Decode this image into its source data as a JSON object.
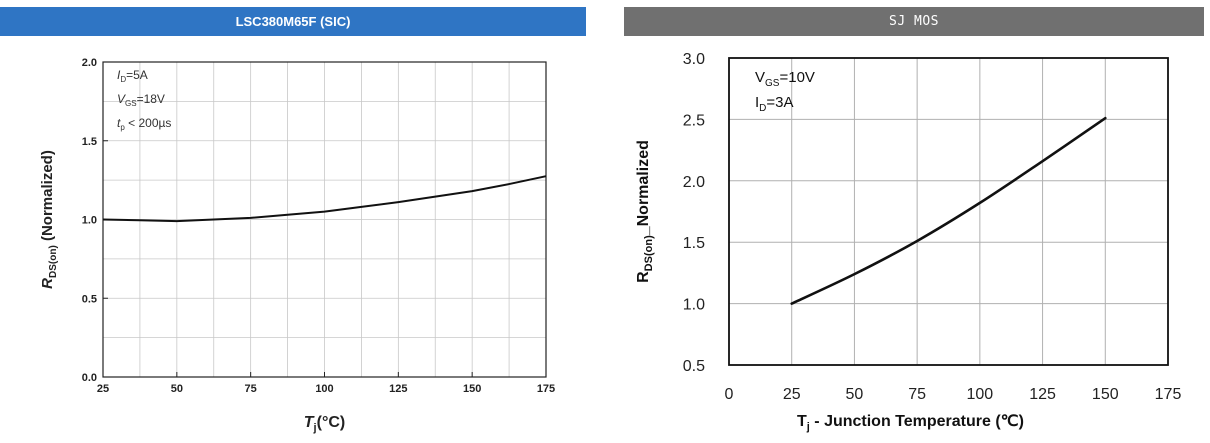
{
  "colors": {
    "left_banner": "#2f75c4",
    "right_banner": "#707070",
    "curve": "#111111",
    "grid": "#c8c8c8",
    "grid_right": "#b0b0b0"
  },
  "chart_data": [
    {
      "type": "line",
      "title": "LSC380M65F (SIC)",
      "xlabel_main": "T",
      "xlabel_sub": "j",
      "xlabel_unit": "(°C)",
      "ylabel_main": "R",
      "ylabel_sub": "DS(on)",
      "ylabel_rest": " (Normalized)",
      "xlim": [
        25,
        175
      ],
      "ylim": [
        0.0,
        2.0
      ],
      "xticks": [
        25,
        50,
        75,
        100,
        125,
        150,
        175
      ],
      "xtick_labels": [
        "25",
        "50",
        "75",
        "100",
        "125",
        "150",
        "175"
      ],
      "yticks": [
        0.0,
        0.5,
        1.0,
        1.5,
        2.0
      ],
      "ytick_labels": [
        "0.0",
        "0.5",
        "1.0",
        "1.5",
        "2.0"
      ],
      "grid": true,
      "annotations": [
        {
          "main": "I",
          "sub": "D",
          "rest": "=5A"
        },
        {
          "main": "V",
          "sub": "GS",
          "rest": "=18V"
        },
        {
          "main": "t",
          "sub": "p",
          "rest": " < 200µs"
        }
      ],
      "series": [
        {
          "x": [
            25,
            37.5,
            50,
            62.5,
            75,
            87.5,
            100,
            112.5,
            125,
            137.5,
            150,
            162.5,
            175
          ],
          "values": [
            1.0,
            0.995,
            0.99,
            1.0,
            1.01,
            1.03,
            1.05,
            1.08,
            1.11,
            1.145,
            1.18,
            1.225,
            1.275
          ]
        }
      ]
    },
    {
      "type": "line",
      "title": "SJ MOS",
      "xlabel_main": "T",
      "xlabel_sub": "j",
      "xlabel_rest": " - Junction Temperature (℃)",
      "ylabel_main": "R",
      "ylabel_sub": "DS(on)",
      "ylabel_rest": "_Normalized",
      "xlim": [
        0,
        175
      ],
      "ylim": [
        0.5,
        3.0
      ],
      "xticks": [
        0,
        25,
        50,
        75,
        100,
        125,
        150,
        175
      ],
      "xtick_labels": [
        "0",
        "25",
        "50",
        "75",
        "100",
        "125",
        "150",
        "175"
      ],
      "yticks": [
        0.5,
        1.0,
        1.5,
        2.0,
        2.5,
        3.0
      ],
      "ytick_labels": [
        "0.5",
        "1.0",
        "1.5",
        "2.0",
        "2.5",
        "3.0"
      ],
      "grid": true,
      "annotations": [
        {
          "main": "V",
          "sub": "GS",
          "rest": "=10V"
        },
        {
          "main": "I",
          "sub": "D",
          "rest": "=3A"
        }
      ],
      "series": [
        {
          "x": [
            25,
            50,
            75,
            100,
            125,
            150
          ],
          "values": [
            1.0,
            1.24,
            1.51,
            1.82,
            2.16,
            2.51
          ]
        }
      ]
    }
  ]
}
